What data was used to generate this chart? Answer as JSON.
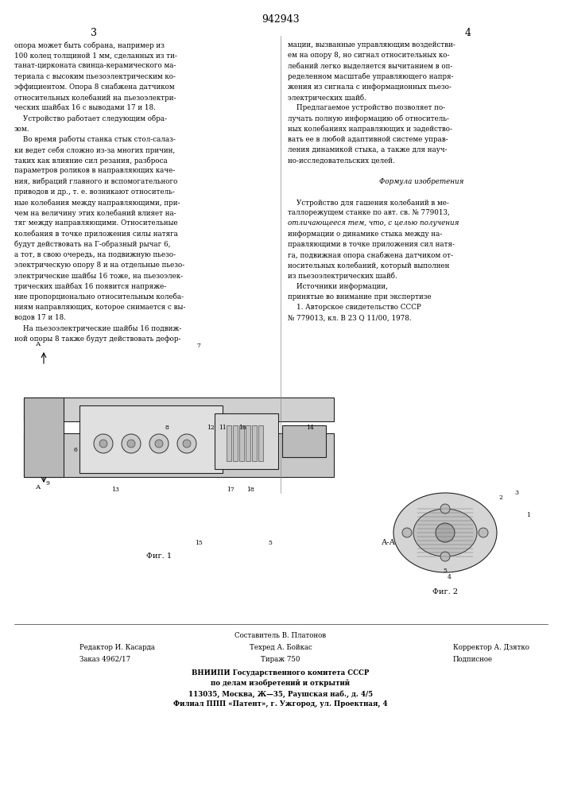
{
  "patent_number": "942943",
  "page_left": "3",
  "page_right": "4",
  "col_left_text": [
    "опора может быть собрана, например из",
    "100 колец толщиной 1 мм, сделанных из ти-",
    "танат-цирконата свинца-керамического ма-",
    "териала с высоким пьезоэлектрическим ко-",
    "эффициентом. Опора 8 снабжена датчиком",
    "относительных колебаний на пьезоэлектри-",
    "ческих шайбах 16 с выводами 17 и 18.",
    "    Устройство работает следующим обра-",
    "зом.",
    "    Во время работы станка стык стол-салаз-",
    "ки ведет себя сложно из-за многих причин,",
    "таких как влияние сил резания, разброса",
    "параметров роликов в направляющих каче-",
    "ния, вибраций главного и вспомогательного",
    "приводов и др., т. е. возникают относитель-",
    "ные колебания между направляющими, при-",
    "чем на величину этих колебаний влияет на-",
    "тяг между направляющими. Относительные",
    "колебания в точке приложения силы натяга",
    "будут действовать на Г-образный рычаг 6,",
    "а тот, в свою очередь, на подвижную пьезо-",
    "электрическую опору 8 и на отдельные пьезо-",
    "электрические шайбы 16 тоже, на пьезоэлек-",
    "трических шайбах 16 появится напряже-",
    "ние пропорционально относительным колеба-",
    "ниям направляющих, которое снимается с вы-",
    "водов 17 и 18.",
    "    На пьезоэлектрические шайбы 16 подвиж-",
    "ной опоры 8 также будут действовать дефор-"
  ],
  "col_right_text": [
    "мации, вызванные управляющим воздействи-",
    "ем на опору 8, но сигнал относительных ко-",
    "лебаний легко выделяется вычитанием в оп-",
    "ределенном масштабе управляющего напря-",
    "жения из сигнала с информационных пьезо-",
    "электрических шайб.",
    "    Предлагаемое устройство позволяет по-",
    "лучать полную информацию об относитель-",
    "ных колебаниях направляющих и задейство-",
    "вать ее в любой адаптивной системе управ-",
    "ления динамикой стыка, а также для науч-",
    "но-исследовательских целей.",
    "",
    "Формула изобретения",
    "",
    "    Устройство для гашения колебаний в ме-",
    "таллорежущем станке по авт. св. № 779013,",
    "отличающееся тем, что, с целью получения",
    "информации о динамике стыка между на-",
    "правляющими в точке приложения сил натя-",
    "га, подвижная опора снабжена датчиком от-",
    "носительных колебаний, который выполнен",
    "из пьезоэлектрических шайб.",
    "    Источники информации,",
    "принятые во внимание при экспертизе",
    "    1. Авторское свидетельство СССР",
    "№ 779013, кл. В 23 Q 11/00, 1978."
  ],
  "formula_label": "Формула изобретения",
  "fig1_label": "Фиг. 1",
  "fig2_label": "Фиг. 2",
  "fig1_section_label": "А-А",
  "footer_compiler": "Составитель В. Платонов",
  "footer_editor": "Редактор И. Касарда",
  "footer_tech": "Техред А. Бойкас",
  "footer_corrector": "Корректор А. Дзятко",
  "footer_order": "Заказ 4962/17",
  "footer_tirazh": "Тираж 750",
  "footer_podpisnoe": "Подписное",
  "footer_vniip1": "ВНИИПИ Государственного комитета СССР",
  "footer_vniip2": "по делам изобретений и открытий",
  "footer_vniip3": "113035, Москва, Ж—35, Раушская наб., д. 4/5",
  "footer_vniip4": "Филиал ППП «Патент», г. Ужгород, ул. Проектная, 4",
  "bg_color": "#ffffff",
  "text_color": "#000000",
  "fig_area_color": "#e8e8e8"
}
